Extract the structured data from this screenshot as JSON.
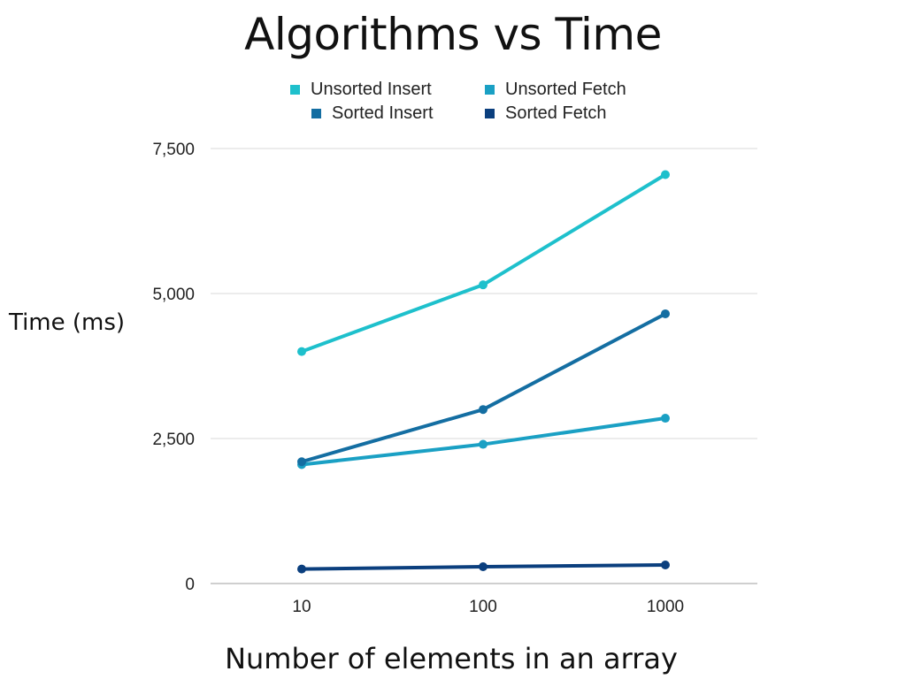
{
  "chart_data": {
    "type": "line",
    "title": "Algorithms vs Time",
    "xlabel": "Number of elements in an array",
    "ylabel": "Time (ms)",
    "categories": [
      "10",
      "100",
      "1000"
    ],
    "ylim": [
      0,
      7500
    ],
    "yticks": [
      0,
      2500,
      5000,
      7500
    ],
    "ytick_labels": [
      "0",
      "2,500",
      "5,000",
      "7,500"
    ],
    "grid": true,
    "legend_position": "top",
    "series": [
      {
        "name": "Unsorted Insert",
        "color": "#1ec0cc",
        "values": [
          4000,
          5150,
          7050
        ]
      },
      {
        "name": "Unsorted Fetch",
        "color": "#1aa0c4",
        "values": [
          2050,
          2400,
          2850
        ]
      },
      {
        "name": "Sorted Insert",
        "color": "#146ea2",
        "values": [
          2100,
          3000,
          4650
        ]
      },
      {
        "name": "Sorted Fetch",
        "color": "#0b3f7e",
        "values": [
          250,
          290,
          320
        ]
      }
    ]
  }
}
